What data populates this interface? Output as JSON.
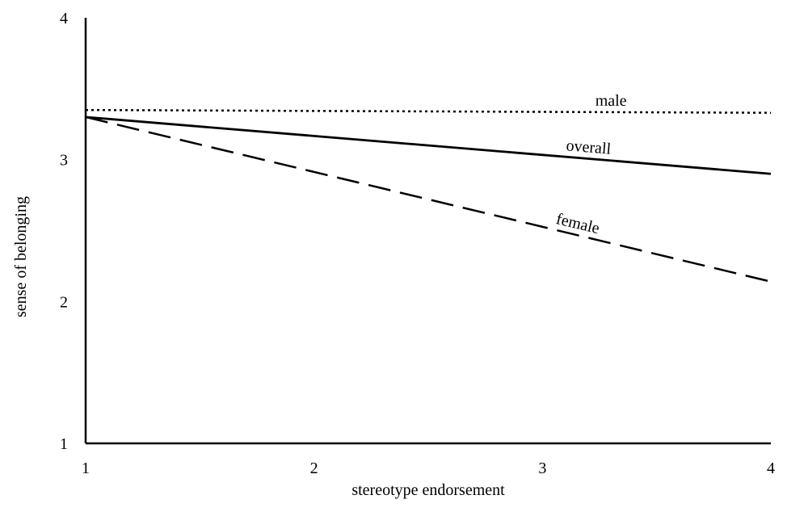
{
  "chart_data": {
    "type": "line",
    "title": "",
    "xlabel": "stereotype endorsement",
    "ylabel": "sense of belonging",
    "xlim": [
      1,
      4
    ],
    "ylim": [
      1,
      4
    ],
    "x_ticks": [
      "1",
      "2",
      "3",
      "4"
    ],
    "y_ticks": [
      "1",
      "2",
      "3",
      "4"
    ],
    "grid": false,
    "legend": "none",
    "series": [
      {
        "name": "male",
        "x": [
          1,
          4
        ],
        "y": [
          3.35,
          3.33
        ],
        "style": "dotted",
        "label_at": 3.3
      },
      {
        "name": "overall",
        "x": [
          1,
          4
        ],
        "y": [
          3.3,
          2.9
        ],
        "style": "solid",
        "label_at": 3.2
      },
      {
        "name": "female",
        "x": [
          1,
          4
        ],
        "y": [
          3.3,
          2.14
        ],
        "style": "dashed",
        "label_at": 3.15
      }
    ],
    "line_color": "#000000"
  }
}
